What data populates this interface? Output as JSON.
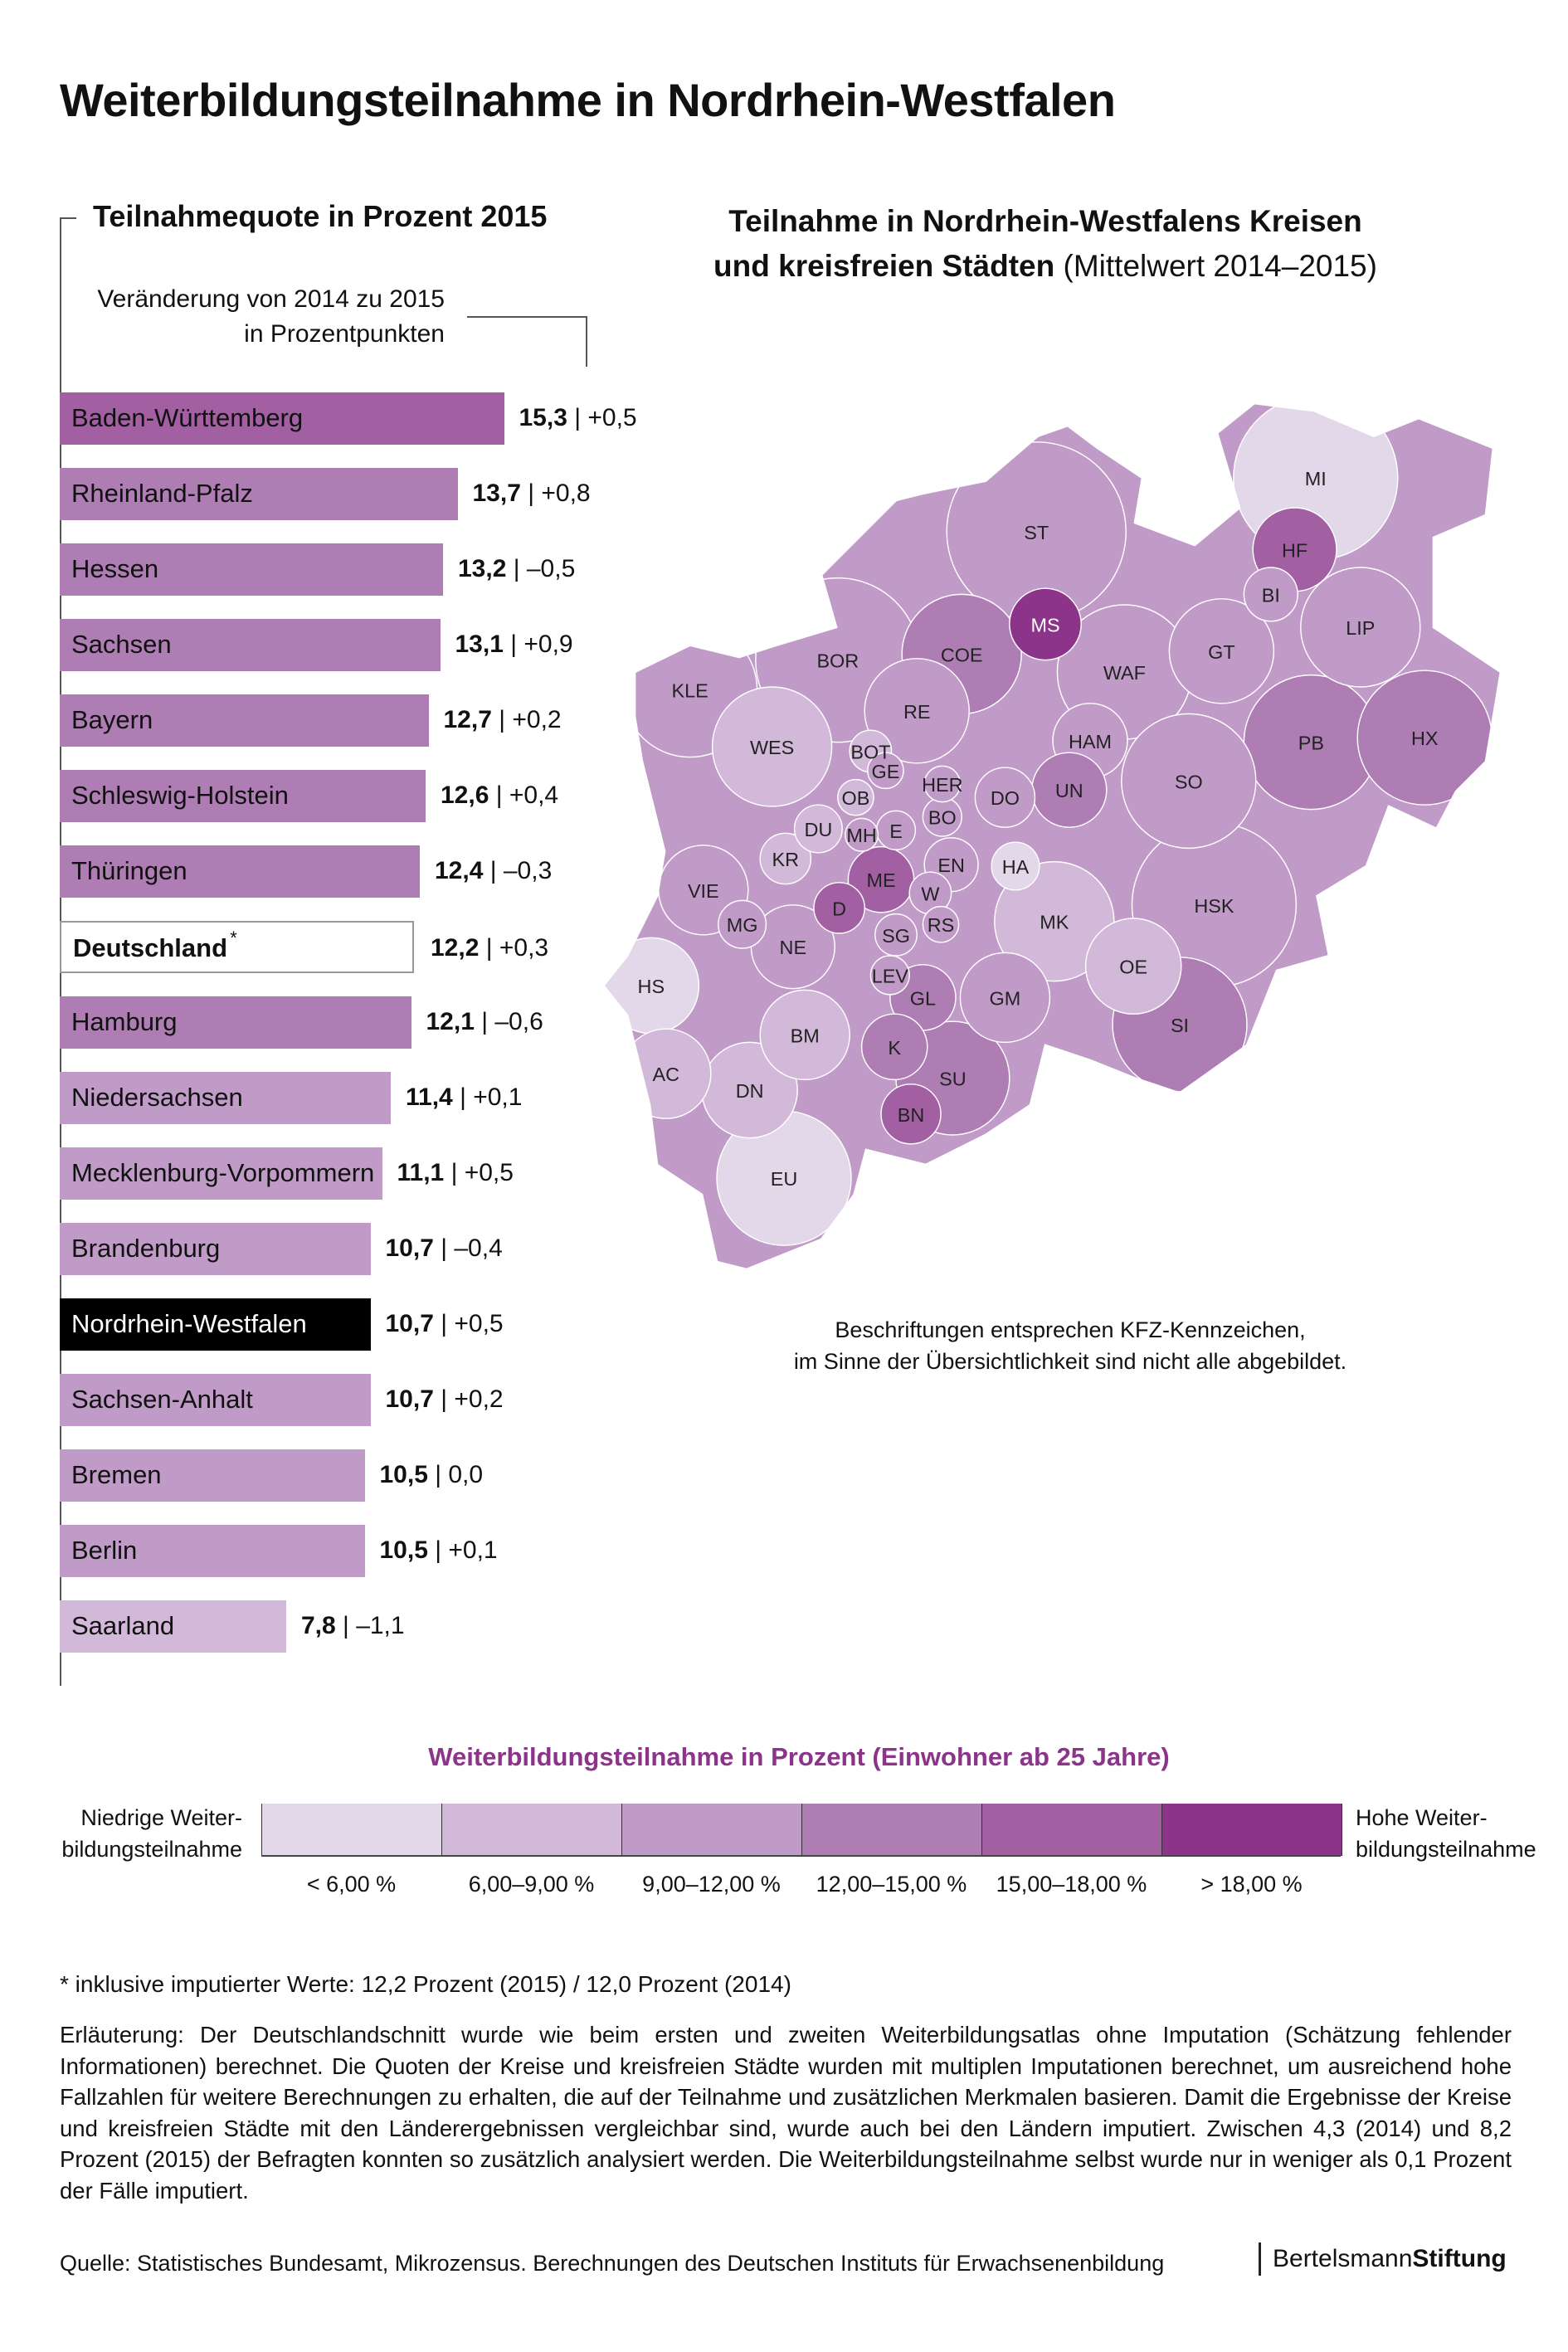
{
  "title": "Weiterbildungsteilnahme in Nordrhein-Westfalen",
  "chart_data": [
    {
      "type": "bar",
      "orientation": "horizontal",
      "title": "Teilnahmequote in Prozent 2015",
      "change_label": [
        "Veränderung von 2014 zu 2015",
        "in Prozentpunkten"
      ],
      "categories": [
        "Baden-Württemberg",
        "Rheinland-Pfalz",
        "Hessen",
        "Sachsen",
        "Bayern",
        "Schleswig-Holstein",
        "Thüringen",
        "Deutschland",
        "Hamburg",
        "Niedersachsen",
        "Mecklenburg-Vorpommern",
        "Brandenburg",
        "Nordrhein-Westfalen",
        "Sachsen-Anhalt",
        "Bremen",
        "Berlin",
        "Saarland"
      ],
      "values": [
        15.3,
        13.7,
        13.2,
        13.1,
        12.7,
        12.6,
        12.4,
        12.2,
        12.1,
        11.4,
        11.1,
        10.7,
        10.7,
        10.7,
        10.5,
        10.5,
        7.8
      ],
      "value_labels": [
        "15,3",
        "13,7",
        "13,2",
        "13,1",
        "12,7",
        "12,6",
        "12,4",
        "12,2",
        "12,1",
        "11,4",
        "11,1",
        "10,7",
        "10,7",
        "10,7",
        "10,5",
        "10,5",
        "7,8"
      ],
      "change_labels": [
        "+0,5",
        "+0,8",
        "–0,5",
        "+0,9",
        "+0,2",
        "+0,4",
        "–0,3",
        "+0,3",
        "–0,6",
        "+0,1",
        "+0,5",
        "–0,4",
        "+0,5",
        "+0,2",
        "0,0",
        "+0,1",
        "–1,1"
      ],
      "changes": [
        0.5,
        0.8,
        -0.5,
        0.9,
        0.2,
        0.4,
        -0.3,
        0.3,
        -0.6,
        0.1,
        0.5,
        -0.4,
        0.5,
        0.2,
        0.0,
        0.1,
        -1.1
      ],
      "highlight": {
        "Deutschland": "outline",
        "Nordrhein-Westfalen": "black"
      },
      "asterisk": "*"
    },
    {
      "type": "choropleth",
      "title_bold": "Teilnahme in Nordrhein-Westfalens Kreisen",
      "title_bold2": "und kreisfreien Städten",
      "title_normal": "(Mittelwert 2014–2015)",
      "regions": [
        {
          "code": "MI",
          "tier": 1
        },
        {
          "code": "ST",
          "tier": 3
        },
        {
          "code": "HF",
          "tier": 5
        },
        {
          "code": "BI",
          "tier": 3
        },
        {
          "code": "MS",
          "tier": 6
        },
        {
          "code": "LIP",
          "tier": 3
        },
        {
          "code": "GT",
          "tier": 3
        },
        {
          "code": "BOR",
          "tier": 3
        },
        {
          "code": "COE",
          "tier": 4
        },
        {
          "code": "WAF",
          "tier": 3
        },
        {
          "code": "KLE",
          "tier": 3
        },
        {
          "code": "RE",
          "tier": 3
        },
        {
          "code": "PB",
          "tier": 4
        },
        {
          "code": "HX",
          "tier": 4
        },
        {
          "code": "WES",
          "tier": 2
        },
        {
          "code": "HAM",
          "tier": 3
        },
        {
          "code": "BOT",
          "tier": 2
        },
        {
          "code": "GE",
          "tier": 3
        },
        {
          "code": "SO",
          "tier": 3
        },
        {
          "code": "HER",
          "tier": 3
        },
        {
          "code": "OB",
          "tier": 2
        },
        {
          "code": "DO",
          "tier": 3
        },
        {
          "code": "UN",
          "tier": 4
        },
        {
          "code": "BO",
          "tier": 3
        },
        {
          "code": "DU",
          "tier": 2
        },
        {
          "code": "MH",
          "tier": 3
        },
        {
          "code": "E",
          "tier": 3
        },
        {
          "code": "KR",
          "tier": 2
        },
        {
          "code": "EN",
          "tier": 3
        },
        {
          "code": "HA",
          "tier": 1
        },
        {
          "code": "ME",
          "tier": 5
        },
        {
          "code": "VIE",
          "tier": 3
        },
        {
          "code": "W",
          "tier": 3
        },
        {
          "code": "HSK",
          "tier": 3
        },
        {
          "code": "D",
          "tier": 5
        },
        {
          "code": "MG",
          "tier": 3
        },
        {
          "code": "RS",
          "tier": 3
        },
        {
          "code": "MK",
          "tier": 2
        },
        {
          "code": "SG",
          "tier": 3
        },
        {
          "code": "NE",
          "tier": 3
        },
        {
          "code": "OE",
          "tier": 2
        },
        {
          "code": "LEV",
          "tier": 3
        },
        {
          "code": "HS",
          "tier": 1
        },
        {
          "code": "GL",
          "tier": 4
        },
        {
          "code": "GM",
          "tier": 3
        },
        {
          "code": "SI",
          "tier": 4
        },
        {
          "code": "BM",
          "tier": 2
        },
        {
          "code": "K",
          "tier": 4
        },
        {
          "code": "AC",
          "tier": 2
        },
        {
          "code": "SU",
          "tier": 4
        },
        {
          "code": "DN",
          "tier": 2
        },
        {
          "code": "BN",
          "tier": 5
        },
        {
          "code": "EU",
          "tier": 1
        }
      ],
      "note": [
        "Beschriftungen entsprechen KFZ-Kennzeichen,",
        "im Sinne der Übersichtlichkeit sind nicht alle abgebildet."
      ]
    }
  ],
  "legend": {
    "title": "Weiterbildungsteilnahme in Prozent (Einwohner ab 25 Jahre)",
    "low": [
      "Niedrige Weiter-",
      "bildungsteilnahme"
    ],
    "high": [
      "Hohe Weiter-",
      "bildungsteilnahme"
    ],
    "classes": [
      "< 6,00 %",
      "6,00–9,00 %",
      "9,00–12,00 %",
      "12,00–15,00 %",
      "15,00–18,00 %",
      "> 18,00 %"
    ],
    "colors": [
      "#e3d7ea",
      "#d3b9d9",
      "#c09bc7",
      "#ae7db4",
      "#a25fa2",
      "#8b348a"
    ]
  },
  "footnote": "* inklusive imputierter Werte: 12,2 Prozent (2015) / 12,0 Prozent (2014)",
  "explanation": "Erläuterung: Der Deutschlandschnitt wurde wie beim ersten und zweiten Weiterbildungsatlas ohne Imputation (Schätzung fehlender Informationen) berechnet. Die Quoten der Kreise und kreisfreien Städte wurden mit multiplen Imputationen berechnet, um ausreichend hohe Fallzahlen für weitere Berechnungen zu erhalten, die auf der Teilnahme und zusätzlichen Merkmalen basieren. Damit die Ergebnisse der Kreise und kreisfreien Städte mit den Länderergebnissen vergleichbar sind, wurde auch bei den Ländern imputiert. Zwischen 4,3 (2014) und 8,2 Prozent (2015) der Befragten konnten so zusätzlich analysiert werden. Die Weiterbildungsteilnahme selbst wurde nur in weniger als 0,1 Prozent der Fälle imputiert.",
  "source": "Quelle: Statistisches Bundesamt, Mikrozensus. Berechnungen des Deutschen Instituts für Erwachsenenbildung",
  "logo": {
    "part1": "Bertelsmann",
    "part2": "Stiftung"
  }
}
